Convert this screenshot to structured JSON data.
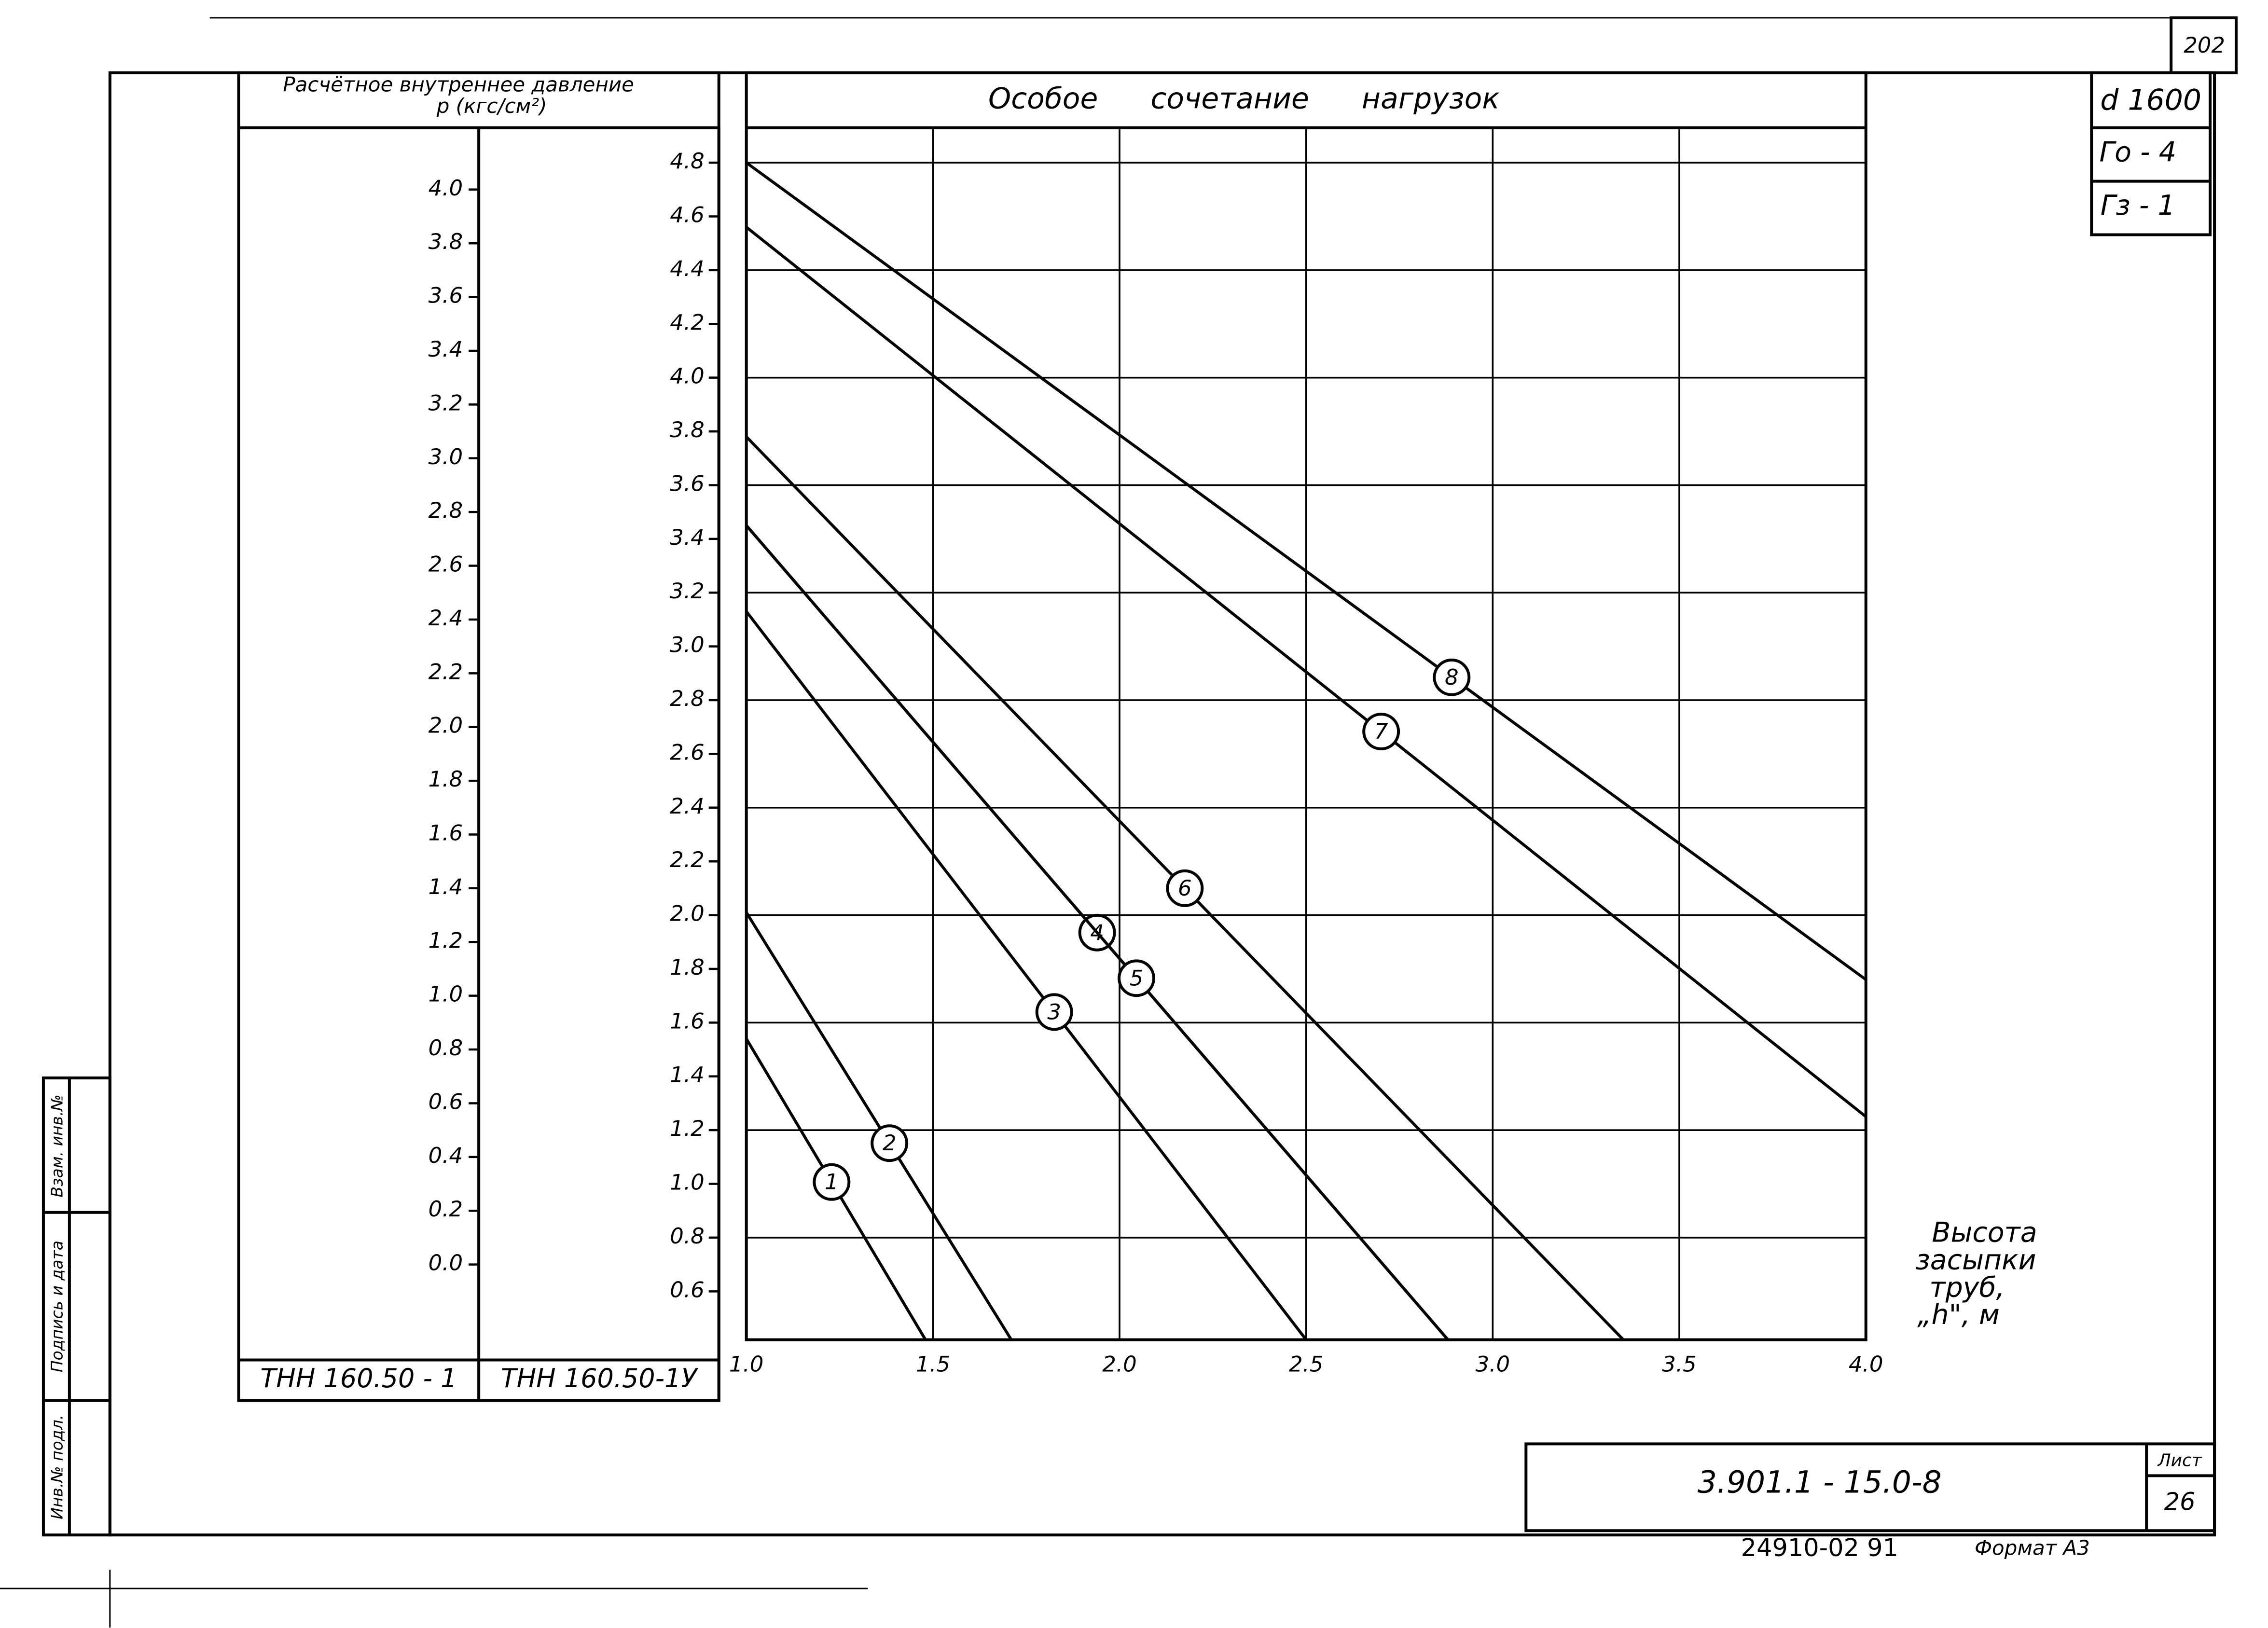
{
  "page_number": "202",
  "stamp": {
    "diameter": "d 1600",
    "g0": "Го - 4",
    "g3": "Гз - 1",
    "doc_code": "3.901.1 - 15.0-8",
    "sheet_label": "Лист",
    "sheet": "26",
    "order": "24910-02  91",
    "format": "Формат А3",
    "side": [
      "Взам. инв.№",
      "Подпись и дата",
      "Инв.№ подл."
    ]
  },
  "chart_data": {
    "type": "line",
    "title": "Особое сочетание нагрузок",
    "y_label": [
      "Расчётное внутреннее давление",
      "p (кгс/см²)"
    ],
    "x_label": [
      "Высота",
      "засыпки",
      "труб,",
      "„h\", м"
    ],
    "y_column_label": "ТНН 160.50-1У",
    "y2_column_label": "ТНН 160.50 - 1",
    "xlim": [
      1,
      4
    ],
    "xticks": [
      {
        "value": 1,
        "label": "1.0"
      },
      1.5,
      {
        "value": 2,
        "label": "2.0"
      },
      2.5,
      {
        "value": 3,
        "label": "3.0"
      },
      3.5,
      {
        "value": 4,
        "label": "4.0"
      }
    ],
    "ylim": [
      0.42,
      4.93
    ],
    "yticks": [
      0.6,
      0.8,
      {
        "value": 1,
        "label": "1.0"
      },
      1.2,
      1.4,
      1.6,
      1.8,
      {
        "value": 2,
        "label": "2.0"
      },
      2.2,
      2.4,
      2.6,
      2.8,
      {
        "value": 3,
        "label": "3.0"
      },
      3.2,
      3.4,
      3.6,
      3.8,
      {
        "value": 4,
        "label": "4.0"
      },
      4.2,
      4.4,
      4.6,
      4.8
    ],
    "y2lim": [
      -0.28,
      4.23
    ],
    "y2ticks": [
      {
        "value": 0,
        "label": "0.0"
      },
      0.2,
      0.4,
      0.6,
      0.8,
      {
        "value": 1,
        "label": "1.0"
      },
      1.2,
      1.4,
      1.6,
      1.8,
      {
        "value": 2,
        "label": "2.0"
      },
      2.2,
      2.4,
      2.6,
      2.8,
      {
        "value": 3,
        "label": "3.0"
      },
      3.2,
      3.4,
      3.6,
      3.8,
      {
        "value": 4,
        "label": "4.0"
      }
    ],
    "grid": true,
    "series": [
      {
        "name": "1",
        "color": "#000000",
        "x": [
          1,
          1.48
        ],
        "values": [
          1.54,
          0.42
        ]
      },
      {
        "name": "2",
        "color": "#000000",
        "x": [
          1,
          1.71
        ],
        "values": [
          2.01,
          0.42
        ]
      },
      {
        "name": "3",
        "color": "#000000",
        "x": [
          1,
          2.5
        ],
        "values": [
          3.13,
          0.42
        ]
      },
      {
        "name": "4",
        "color": "#000000",
        "x": [
          1,
          2.88
        ],
        "values": [
          3.45,
          0.42
        ]
      },
      {
        "name": "5",
        "color": "#000000",
        "x": [
          1,
          2.88
        ],
        "values": [
          3.45,
          0.42
        ]
      },
      {
        "name": "6",
        "color": "#000000",
        "x": [
          1,
          3.35
        ],
        "values": [
          3.78,
          0.42
        ]
      },
      {
        "name": "7",
        "color": "#000000",
        "x": [
          1,
          4
        ],
        "values": [
          4.56,
          1.25
        ]
      },
      {
        "name": "8",
        "color": "#000000",
        "x": [
          1,
          4
        ],
        "values": [
          4.8,
          1.76
        ]
      }
    ]
  }
}
